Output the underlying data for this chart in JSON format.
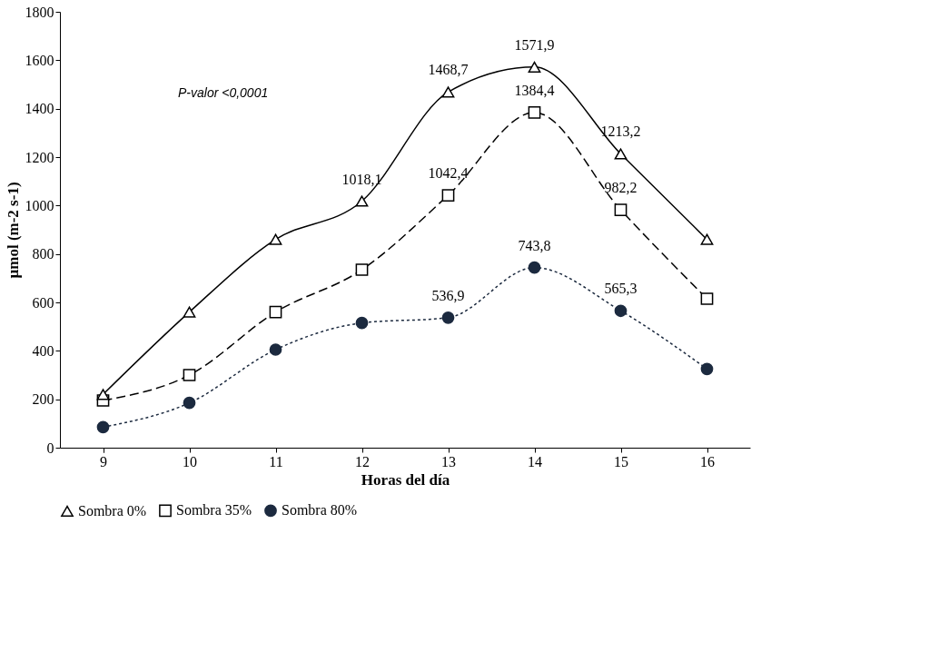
{
  "chart_data": {
    "type": "line",
    "xlabel": "Horas del día",
    "ylabel": "µmol (m-2 s-1)",
    "categories": [
      "9",
      "10",
      "11",
      "12",
      "13",
      "14",
      "15",
      "16"
    ],
    "series": [
      {
        "name": "Sombra 0%",
        "color": "#000000",
        "marker": "triangle",
        "line_style": "solid",
        "values": [
          220,
          560,
          860,
          1018.1,
          1468.7,
          1571.9,
          1213.2,
          860
        ],
        "value_labels": [
          null,
          null,
          null,
          "1018,1",
          "1468,7",
          "1571,9",
          "1213,2",
          null
        ]
      },
      {
        "name": "Sombra 35%",
        "color": "#000000",
        "marker": "square",
        "line_style": "dashed",
        "values": [
          195,
          300,
          560,
          735,
          1042.4,
          1384.4,
          982.2,
          615
        ],
        "value_labels": [
          null,
          null,
          null,
          null,
          "1042,4",
          "1384,4",
          "982,2",
          null
        ]
      },
      {
        "name": "Sombra 80%",
        "color": "#1c2a3f",
        "marker": "circle",
        "line_style": "dotted",
        "values": [
          85,
          185,
          405,
          515,
          536.9,
          743.8,
          565.3,
          325
        ],
        "value_labels": [
          null,
          null,
          null,
          null,
          "536,9",
          "743,8",
          "565,3",
          null
        ]
      }
    ],
    "ylim": [
      0,
      1800
    ],
    "yticks": [
      0,
      200,
      400,
      600,
      800,
      1000,
      1200,
      1400,
      1600,
      1800
    ],
    "grid": false,
    "legend": "bottom",
    "annotations": [
      "P-valor <0,0001"
    ]
  }
}
